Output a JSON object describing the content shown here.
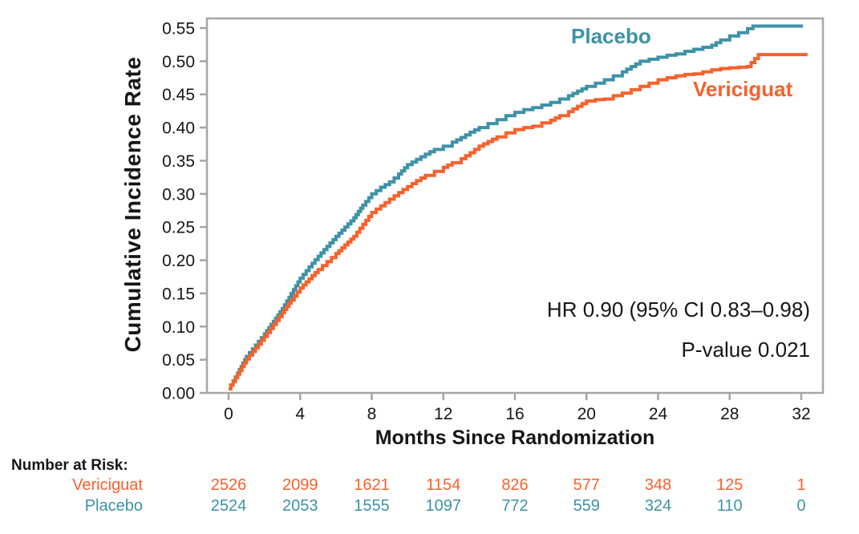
{
  "colors": {
    "frame": "#a6a6a6",
    "text": "#161616"
  },
  "chart_data": {
    "type": "line",
    "subtype": "cumulative-incidence-step",
    "xlabel": "Months Since Randomization",
    "ylabel": "Cumulative Incidence Rate",
    "x_ticks": [
      "0",
      "4",
      "8",
      "12",
      "16",
      "20",
      "24",
      "28",
      "32"
    ],
    "y_ticks": [
      "0.00",
      "0.05",
      "0.10",
      "0.15",
      "0.20",
      "0.25",
      "0.30",
      "0.35",
      "0.40",
      "0.45",
      "0.50",
      "0.55"
    ],
    "xlim": [
      -1.2,
      33.2
    ],
    "ylim": [
      0,
      0.565
    ],
    "grid": false,
    "legend_position": "inline-curve-labels",
    "annotations": [
      "HR 0.90 (95% CI 0.83–0.98)",
      "P-value 0.021"
    ],
    "series": [
      {
        "name": "Placebo",
        "color": "#3e92a6",
        "points": [
          [
            0,
            0.006
          ],
          [
            0.5,
            0.03
          ],
          [
            1,
            0.055
          ],
          [
            1.5,
            0.072
          ],
          [
            2,
            0.089
          ],
          [
            2.5,
            0.108
          ],
          [
            3,
            0.127
          ],
          [
            3.5,
            0.15
          ],
          [
            4,
            0.173
          ],
          [
            4.5,
            0.19
          ],
          [
            5,
            0.206
          ],
          [
            5.5,
            0.221
          ],
          [
            6,
            0.236
          ],
          [
            6.5,
            0.25
          ],
          [
            7,
            0.264
          ],
          [
            7.5,
            0.283
          ],
          [
            8,
            0.3
          ],
          [
            8.5,
            0.31
          ],
          [
            9,
            0.318
          ],
          [
            9.5,
            0.33
          ],
          [
            10,
            0.344
          ],
          [
            10.5,
            0.352
          ],
          [
            11,
            0.36
          ],
          [
            11.5,
            0.367
          ],
          [
            12,
            0.372
          ],
          [
            12.5,
            0.378
          ],
          [
            13,
            0.385
          ],
          [
            13.5,
            0.393
          ],
          [
            14,
            0.4
          ],
          [
            14.5,
            0.406
          ],
          [
            15,
            0.412
          ],
          [
            15.5,
            0.418
          ],
          [
            16,
            0.423
          ],
          [
            16.5,
            0.427
          ],
          [
            17,
            0.43
          ],
          [
            17.5,
            0.434
          ],
          [
            18,
            0.438
          ],
          [
            18.5,
            0.443
          ],
          [
            19,
            0.448
          ],
          [
            19.5,
            0.455
          ],
          [
            20,
            0.462
          ],
          [
            20.5,
            0.467
          ],
          [
            21,
            0.472
          ],
          [
            21.5,
            0.478
          ],
          [
            22,
            0.484
          ],
          [
            22.5,
            0.492
          ],
          [
            23,
            0.5
          ],
          [
            23.5,
            0.503
          ],
          [
            24,
            0.506
          ],
          [
            24.5,
            0.509
          ],
          [
            25,
            0.511
          ],
          [
            25.5,
            0.515
          ],
          [
            26,
            0.518
          ],
          [
            26.5,
            0.521
          ],
          [
            27,
            0.524
          ],
          [
            27.5,
            0.532
          ],
          [
            28,
            0.538
          ],
          [
            28.5,
            0.543
          ],
          [
            29,
            0.549
          ],
          [
            29.3,
            0.553
          ],
          [
            32.1,
            0.553
          ]
        ]
      },
      {
        "name": "Vericiguat",
        "color": "#f7612c",
        "points": [
          [
            0,
            0.006
          ],
          [
            0.5,
            0.028
          ],
          [
            1,
            0.051
          ],
          [
            1.5,
            0.068
          ],
          [
            2,
            0.085
          ],
          [
            2.5,
            0.103
          ],
          [
            3,
            0.121
          ],
          [
            3.5,
            0.14
          ],
          [
            4,
            0.158
          ],
          [
            4.5,
            0.172
          ],
          [
            5,
            0.186
          ],
          [
            5.5,
            0.198
          ],
          [
            6,
            0.21
          ],
          [
            6.5,
            0.223
          ],
          [
            7,
            0.236
          ],
          [
            7.5,
            0.254
          ],
          [
            8,
            0.272
          ],
          [
            8.5,
            0.282
          ],
          [
            9,
            0.292
          ],
          [
            9.5,
            0.302
          ],
          [
            10,
            0.311
          ],
          [
            10.5,
            0.32
          ],
          [
            11,
            0.328
          ],
          [
            11.5,
            0.334
          ],
          [
            12,
            0.34
          ],
          [
            12.5,
            0.347
          ],
          [
            13,
            0.353
          ],
          [
            13.5,
            0.362
          ],
          [
            14,
            0.372
          ],
          [
            14.5,
            0.379
          ],
          [
            15,
            0.386
          ],
          [
            15.5,
            0.392
          ],
          [
            16,
            0.397
          ],
          [
            16.5,
            0.4
          ],
          [
            17,
            0.402
          ],
          [
            17.5,
            0.407
          ],
          [
            18,
            0.411
          ],
          [
            18.5,
            0.418
          ],
          [
            19,
            0.424
          ],
          [
            19.5,
            0.432
          ],
          [
            20,
            0.44
          ],
          [
            20.5,
            0.442
          ],
          [
            21,
            0.443
          ],
          [
            21.5,
            0.448
          ],
          [
            22,
            0.452
          ],
          [
            22.5,
            0.457
          ],
          [
            23,
            0.462
          ],
          [
            23.5,
            0.467
          ],
          [
            24,
            0.472
          ],
          [
            24.5,
            0.475
          ],
          [
            25,
            0.478
          ],
          [
            25.5,
            0.48
          ],
          [
            26,
            0.481
          ],
          [
            26.5,
            0.484
          ],
          [
            27,
            0.487
          ],
          [
            27.5,
            0.489
          ],
          [
            28,
            0.49
          ],
          [
            28.5,
            0.491
          ],
          [
            29,
            0.492
          ],
          [
            29.6,
            0.51
          ],
          [
            32.35,
            0.51
          ]
        ]
      }
    ],
    "risk_table": {
      "title": "Number at Risk:",
      "months": [
        0,
        4,
        8,
        12,
        16,
        20,
        24,
        28,
        32
      ],
      "rows": [
        {
          "name": "Vericiguat",
          "color": "#f7612c",
          "values": [
            "2526",
            "2099",
            "1621",
            "1154",
            "826",
            "577",
            "348",
            "125",
            "1"
          ]
        },
        {
          "name": "Placebo",
          "color": "#3e92a6",
          "values": [
            "2524",
            "2053",
            "1555",
            "1097",
            "772",
            "559",
            "324",
            "110",
            "0"
          ]
        }
      ]
    }
  }
}
